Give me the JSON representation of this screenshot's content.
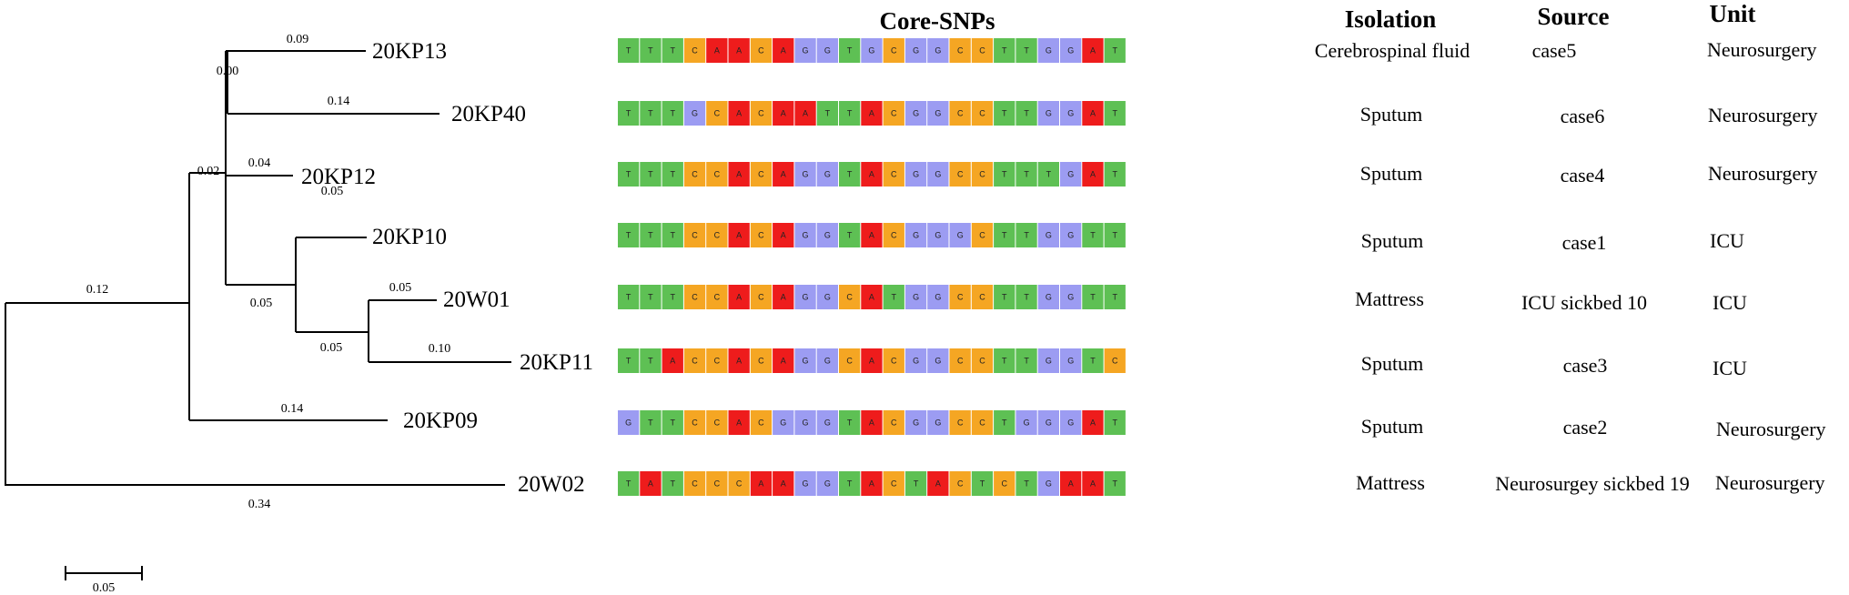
{
  "headers": {
    "core_snps": "Core-SNPs",
    "isolation": "Isolation",
    "source": "Source",
    "unit": "Unit"
  },
  "colors": {
    "T": "#5ec054",
    "C": "#f5a623",
    "A": "#ee1c1c",
    "G": "#9c9cf2"
  },
  "taxa": [
    {
      "id": "20KP13",
      "snps": "TTTCAACAGGTGCGGCCTTGGAT",
      "isolation": "Cerebrospinal fluid",
      "source": "case5",
      "unit": "Neurosurgery"
    },
    {
      "id": "20KP40",
      "snps": "TTTGCACAATTACGGCCTTGGAT",
      "isolation": "Sputum",
      "source": "case6",
      "unit": "Neurosurgery"
    },
    {
      "id": "20KP12",
      "snps": "TTTCCACAGGTACGGCCTTTGAT",
      "isolation": "Sputum",
      "source": "case4",
      "unit": "Neurosurgery"
    },
    {
      "id": "20KP10",
      "snps": "TTTCCACAGGTACGGGCTTGGTT",
      "isolation": "Sputum",
      "source": "case1",
      "unit": "ICU"
    },
    {
      "id": "20W01",
      "snps": "TTTCCACAGGCATGGCCTTGGTT",
      "isolation": "Mattress",
      "source": "ICU sickbed 10",
      "unit": "ICU"
    },
    {
      "id": "20KP11",
      "snps": "TTACCACAGGCACGGCCTTGGTC",
      "isolation": "Sputum",
      "source": "case3",
      "unit": "ICU"
    },
    {
      "id": "20KP09",
      "snps": "GTTCCACGGGTACGGCCTGGGAT",
      "isolation": "Sputum",
      "source": "case2",
      "unit": "Neurosurgery"
    },
    {
      "id": "20W02",
      "snps": "TATCCCAAGGTACTACTCTGAAT",
      "isolation": "Mattress",
      "source": "Neurosurgey sickbed 19",
      "unit": "Neurosurgery"
    }
  ],
  "branch_labels": [
    "0.09",
    "0.00",
    "0.14",
    "0.04",
    "0.02",
    "0.05",
    "0.05",
    "0.05",
    "0.05",
    "0.10",
    "0.12",
    "0.14",
    "0.34"
  ],
  "scale_bar": {
    "label": "0.05"
  }
}
